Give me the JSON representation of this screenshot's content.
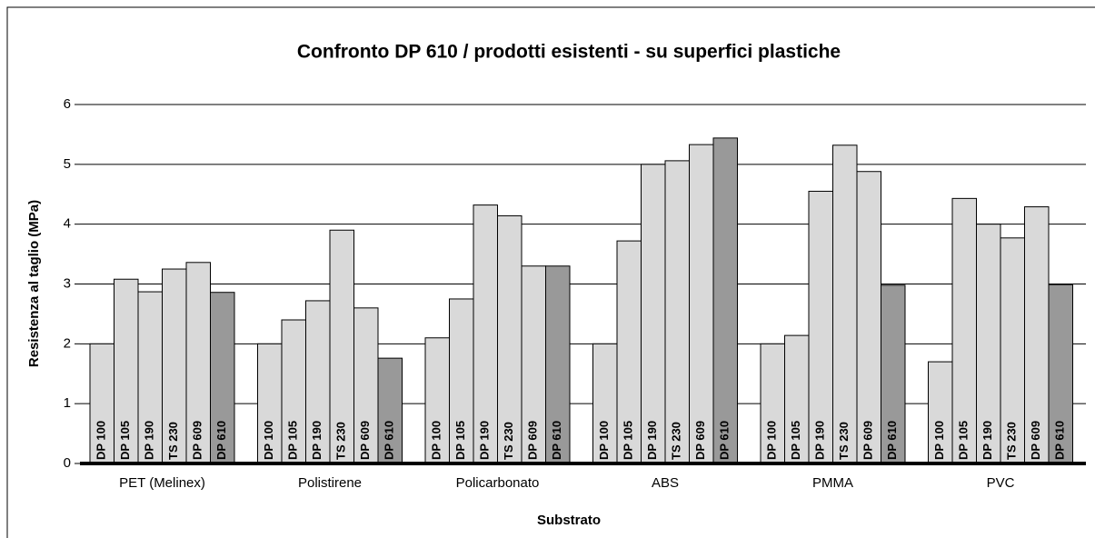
{
  "chart_data": {
    "type": "bar",
    "title": "Confronto DP 610 / prodotti esistenti - su superfici plastiche",
    "x_label": "Substrato",
    "y_label": "Resistenza al taglio (MPa)",
    "categories": [
      "PET (Melinex)",
      "Polistirene",
      "Policarbonato",
      "ABS",
      "PMMA",
      "PVC"
    ],
    "series": [
      {
        "name": "DP 100",
        "color": "#d9d9d9",
        "values": [
          2.0,
          2.0,
          2.1,
          2.0,
          2.0,
          1.7
        ]
      },
      {
        "name": "DP 105",
        "color": "#d9d9d9",
        "values": [
          3.08,
          2.4,
          2.75,
          3.72,
          2.14,
          4.43
        ]
      },
      {
        "name": "DP 190",
        "color": "#d9d9d9",
        "values": [
          2.87,
          2.72,
          4.32,
          5.0,
          4.55,
          4.0
        ]
      },
      {
        "name": "TS 230",
        "color": "#d9d9d9",
        "values": [
          3.25,
          3.9,
          4.14,
          5.06,
          5.32,
          3.77
        ]
      },
      {
        "name": "DP 609",
        "color": "#d9d9d9",
        "values": [
          3.36,
          2.6,
          3.3,
          5.33,
          4.88,
          4.29
        ]
      },
      {
        "name": "DP 610",
        "color": "#999999",
        "values": [
          2.86,
          1.76,
          3.3,
          5.44,
          2.98,
          2.99
        ]
      }
    ],
    "ylim": [
      0,
      6
    ],
    "yticks": [
      0,
      1,
      2,
      3,
      4,
      5,
      6
    ],
    "grid": true
  }
}
